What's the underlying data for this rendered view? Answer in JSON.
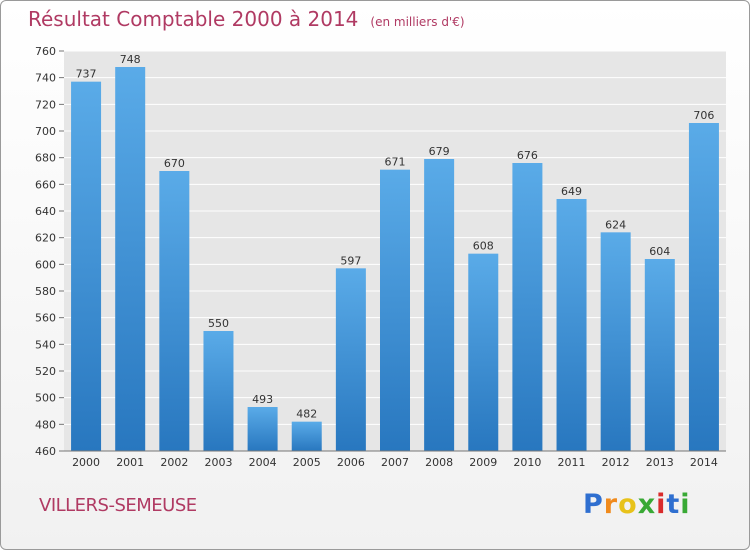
{
  "chart_data": {
    "type": "bar",
    "title": "Résultat Comptable 2000 à 2014",
    "subtitle": "(en milliers d'€)",
    "categories": [
      "2000",
      "2001",
      "2002",
      "2003",
      "2004",
      "2005",
      "2006",
      "2007",
      "2008",
      "2009",
      "2010",
      "2011",
      "2012",
      "2013",
      "2014"
    ],
    "values": [
      737,
      748,
      670,
      550,
      493,
      482,
      597,
      671,
      679,
      608,
      676,
      649,
      624,
      604,
      706
    ],
    "ylim": [
      460,
      760
    ],
    "yticks": [
      460,
      480,
      500,
      520,
      540,
      560,
      580,
      600,
      620,
      640,
      660,
      680,
      700,
      720,
      740,
      760
    ],
    "grid": true,
    "legend": "none",
    "xlabel": "",
    "ylabel": ""
  },
  "place": "VILLERS-SEMEUSE",
  "brand": {
    "letters": [
      "P",
      "r",
      "o",
      "x",
      "i",
      "t",
      "i"
    ],
    "colors": [
      "#2f6fd0",
      "#f08a1c",
      "#e8c21a",
      "#39a935",
      "#d92b2b",
      "#2f6fd0",
      "#39a935"
    ]
  },
  "colors": {
    "bar_top": "#5aabe8",
    "bar_bottom": "#2877bf",
    "title": "#b03a63",
    "plot_bg": "#e6e6e6",
    "grid": "#ffffff"
  }
}
